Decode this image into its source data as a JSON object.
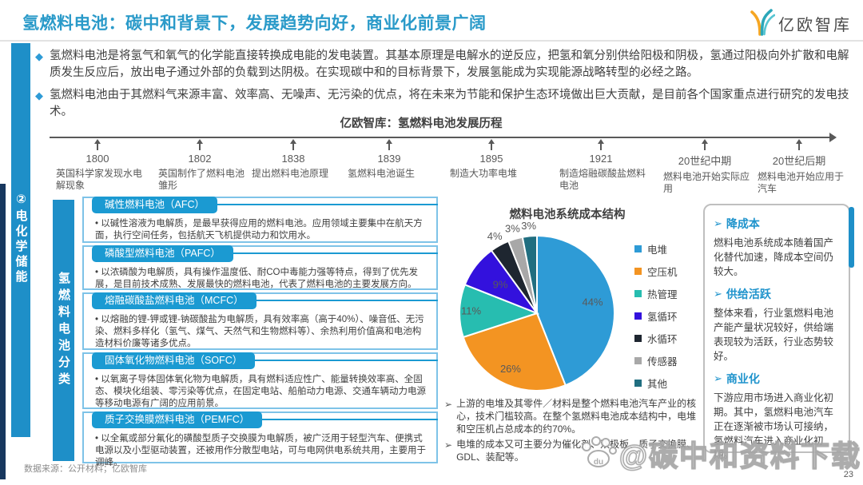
{
  "header": {
    "title": "氢燃料电池：碳中和背景下，发展趋势向好，商业化前景广阔",
    "logo_text": "亿欧智库"
  },
  "intro": {
    "bullets": [
      {
        "marker": "◆",
        "text": "氢燃料电池是将氢气和氧气的化学能直接转换成电能的发电装置。其基本原理是电解水的逆反应，把氢和氧分别供给阳极和阴极，氢通过阳极向外扩散和电解质发生反应后，放出电子通过外部的负载到达阴极。在实现碳中和的目标背景下，发展氢能成为实现能源战略转型的必经之路。"
      },
      {
        "marker": "◆",
        "text": "氢燃料电池由于其燃料气来源丰富、效率高、无噪声、无污染的优点，将在未来为节能和保护生态环境做出巨大贡献，是目前各个国家重点进行研究的发电技术。"
      }
    ]
  },
  "sidebar": {
    "section_label": "②电化学储能"
  },
  "classification": {
    "bar_label": "氢燃料电池分类",
    "boxes": [
      {
        "title": "碱性燃料电池（AFC）",
        "text": "• 以碱性溶液为电解质，是最早获得应用的燃料电池。应用领域主要集中在航天方面，执行空间任务，包括航天飞机提供动力和饮用水。"
      },
      {
        "title": "磷酸型燃料电池（PAFC）",
        "text": "• 以浓磷酸为电解质，具有操作温度低、耐CO中毒能力强等特点，得到了优先发展，是目前技术成熟、发展最快的燃料电池，代表了燃料电池的主要发展方向。"
      },
      {
        "title": "熔融碳酸盐燃料电池（MCFC）",
        "text": "• 以熔融的锂-钾或锂-钠碳酸盐为电解质，具有效率高（高于40%）、噪音低、无污染、燃料多样化（氢气、煤气、天然气和生物燃料等）、余热利用价值高和电池构造材料价廉等诸多优点。"
      },
      {
        "title": "固体氧化物燃料电池（SOFC）",
        "text": "• 以氧离子导体固体氧化物为电解质，具有燃料适应性广、能量转换效率高、全固态、模块化组装、零污染等优点，在固定电站、船舶动力电源、交通车辆动力电源等移动电源有广阔的应用前景。"
      },
      {
        "title": "质子交换膜燃料电池（PEMFC）",
        "text": "• 以全氟或部分氟化的磺酸型质子交换膜为电解质，被广泛用于轻型汽车、便携式电源以及小型驱动装置，还被用作分散型电站，可与电网供电系统共用，主要用于调峰。"
      }
    ]
  },
  "timeline": {
    "title": "亿欧智库：氢燃料电池发展历程",
    "events": [
      {
        "year": "1800",
        "desc": "英国科学家发现水电解现象"
      },
      {
        "year": "1802",
        "desc": "英国制作了燃料电池雏形"
      },
      {
        "year": "1838",
        "desc": "提出燃料电池原理"
      },
      {
        "year": "1839",
        "desc": "氢燃料电池诞生"
      },
      {
        "year": "1895",
        "desc": "制造大功率电堆"
      },
      {
        "year": "1921",
        "desc": "制造熔融碳酸盐燃料电池"
      },
      {
        "year": "20世纪中期",
        "desc": "燃料电池开始实际应用"
      },
      {
        "year": "20世纪后期",
        "desc": "燃料电池开始应用于汽车"
      }
    ]
  },
  "chart_data": {
    "type": "pie",
    "title": "燃料电池系统成本结构",
    "series": [
      {
        "name": "电堆",
        "value": 44,
        "color": "#2E9BD6"
      },
      {
        "name": "空压机",
        "value": 26,
        "color": "#F39422"
      },
      {
        "name": "热管理",
        "value": 11,
        "color": "#27BDB0"
      },
      {
        "name": "氢循环",
        "value": 9,
        "color": "#3311DD"
      },
      {
        "name": "水循环",
        "value": 4,
        "color": "#1E2630"
      },
      {
        "name": "传感器",
        "value": 3,
        "color": "#A8A8A8"
      },
      {
        "name": "其他",
        "value": 3,
        "color": "#206E80"
      }
    ],
    "start_angle_deg": 0,
    "direction": "clockwise",
    "legend_position": "right",
    "labels_format": "percent"
  },
  "pie_notes": {
    "items": [
      {
        "marker": "➢",
        "text": "上游的电堆及其零件／材料是整个燃料电池汽车产业的核心，技术门槛较高。在整个氢燃料电池成本结构中，电堆和空压机占总成本的约70%。"
      },
      {
        "marker": "➢",
        "text": "电堆的成本又可主要分为催化剂、双极板、质子交换膜、GDL、装配等。"
      }
    ]
  },
  "insights": {
    "sections": [
      {
        "marker": "➢",
        "title": "降成本",
        "text": "燃料电池系统成本随着国产化替代加速，降成本空间仍较大。"
      },
      {
        "marker": "➢",
        "title": "供给活跃",
        "text": "整体来看，行业氢燃料电池产能产量状况较好，供给端表现较为活跃，行业态势较好。"
      },
      {
        "marker": "➢",
        "title": "商业化",
        "text": "下游应用市场进入商业化初期。其中，氢燃料电池汽车正在逐渐被市场认可接纳，氢燃料汽车进入商业化初期。"
      }
    ]
  },
  "footer": {
    "source": "数据来源：公开材料；亿欧智库",
    "page_number": "23",
    "watermark": "@碳中和资料下载",
    "watermark_badge": "du"
  },
  "colors": {
    "title_blue": "#2A9AC9",
    "bar_blue": "#1E8FC8",
    "box_border_blue": "#7EC3E8",
    "navy_strip": "#17375E",
    "text_dark": "#3F3F3F",
    "text_gray": "#595959"
  }
}
